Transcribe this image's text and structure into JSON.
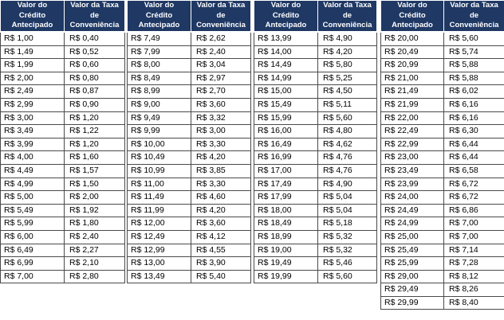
{
  "headers": {
    "credit": [
      "Valor do",
      "Crédito",
      "Antecipado"
    ],
    "fee": [
      "Valor da Taxa",
      "de",
      "Conveniência"
    ]
  },
  "tables": [
    {
      "rows": [
        [
          "R$ 1,00",
          "R$ 0,40"
        ],
        [
          "R$ 1,49",
          "R$ 0,52"
        ],
        [
          "R$ 1,99",
          "R$ 0,60"
        ],
        [
          "R$ 2,00",
          "R$ 0,80"
        ],
        [
          "R$ 2,49",
          "R$ 0,87"
        ],
        [
          "R$ 2,99",
          "R$ 0,90"
        ],
        [
          "R$ 3,00",
          "R$ 1,20"
        ],
        [
          "R$ 3,49",
          "R$ 1,22"
        ],
        [
          "R$ 3,99",
          "R$ 1,20"
        ],
        [
          "R$ 4,00",
          "R$ 1,60"
        ],
        [
          "R$ 4,49",
          "R$ 1,57"
        ],
        [
          "R$ 4,99",
          "R$ 1,50"
        ],
        [
          "R$ 5,00",
          "R$ 2,00"
        ],
        [
          "R$ 5,49",
          "R$ 1,92"
        ],
        [
          "R$ 5,99",
          "R$ 1,80"
        ],
        [
          "R$ 6,00",
          "R$ 2,40"
        ],
        [
          "R$ 6,49",
          "R$ 2,27"
        ],
        [
          "R$ 6,99",
          "R$ 2,10"
        ],
        [
          "R$ 7,00",
          "R$ 2,80"
        ]
      ]
    },
    {
      "rows": [
        [
          "R$ 7,49",
          "R$ 2,62"
        ],
        [
          "R$ 7,99",
          "R$ 2,40"
        ],
        [
          "R$ 8,00",
          "R$ 3,04"
        ],
        [
          "R$ 8,49",
          "R$ 2,97"
        ],
        [
          "R$ 8,99",
          "R$ 2,70"
        ],
        [
          "R$ 9,00",
          "R$ 3,60"
        ],
        [
          "R$ 9,49",
          "R$ 3,32"
        ],
        [
          "R$ 9,99",
          "R$ 3,00"
        ],
        [
          "R$ 10,00",
          "R$ 3,30"
        ],
        [
          "R$ 10,49",
          "R$ 4,20"
        ],
        [
          "R$ 10,99",
          "R$ 3,85"
        ],
        [
          "R$ 11,00",
          "R$ 3,30"
        ],
        [
          "R$ 11,49",
          "R$ 4,60"
        ],
        [
          "R$ 11,99",
          "R$ 4,20"
        ],
        [
          "R$ 12,00",
          "R$ 3,60"
        ],
        [
          "R$ 12,49",
          "R$ 4,12"
        ],
        [
          "R$ 12,99",
          "R$ 4,55"
        ],
        [
          "R$ 13,00",
          "R$ 3,90"
        ],
        [
          "R$ 13,49",
          "R$ 5,40"
        ]
      ]
    },
    {
      "rows": [
        [
          "R$ 13,99",
          "R$ 4,90"
        ],
        [
          "R$ 14,00",
          "R$ 4,20"
        ],
        [
          "R$ 14,49",
          "R$ 5,80"
        ],
        [
          "R$ 14,99",
          "R$ 5,25"
        ],
        [
          "R$ 15,00",
          "R$ 4,50"
        ],
        [
          "R$ 15,49",
          "R$ 5,11"
        ],
        [
          "R$ 15,99",
          "R$ 5,60"
        ],
        [
          "R$ 16,00",
          "R$ 4,80"
        ],
        [
          "R$ 16,49",
          "R$ 4,62"
        ],
        [
          "R$ 16,99",
          "R$ 4,76"
        ],
        [
          "R$ 17,00",
          "R$ 4,76"
        ],
        [
          "R$ 17,49",
          "R$ 4,90"
        ],
        [
          "R$ 17,99",
          "R$ 5,04"
        ],
        [
          "R$ 18,00",
          "R$ 5,04"
        ],
        [
          "R$ 18,49",
          "R$ 5,18"
        ],
        [
          "R$ 18,99",
          "R$ 5,32"
        ],
        [
          "R$ 19,00",
          "R$ 5,32"
        ],
        [
          "R$ 19,49",
          "R$ 5,46"
        ],
        [
          "R$ 19,99",
          "R$ 5,60"
        ]
      ]
    },
    {
      "rows": [
        [
          "R$ 20,00",
          "R$ 5,60"
        ],
        [
          "R$ 20,49",
          "R$ 5,74"
        ],
        [
          "R$ 20,99",
          "R$ 5,88"
        ],
        [
          "R$ 21,00",
          "R$ 5,88"
        ],
        [
          "R$ 21,49",
          "R$ 6,02"
        ],
        [
          "R$ 21,99",
          "R$ 6,16"
        ],
        [
          "R$ 22,00",
          "R$ 6,16"
        ],
        [
          "R$ 22,49",
          "R$ 6,30"
        ],
        [
          "R$ 22,99",
          "R$ 6,44"
        ],
        [
          "R$ 23,00",
          "R$ 6,44"
        ],
        [
          "R$ 23,49",
          "R$ 6,58"
        ],
        [
          "R$ 23,99",
          "R$ 6,72"
        ],
        [
          "R$ 24,00",
          "R$ 6,72"
        ],
        [
          "R$ 24,49",
          "R$ 6,86"
        ],
        [
          "R$ 24,99",
          "R$ 7,00"
        ],
        [
          "R$ 25,00",
          "R$ 7,00"
        ],
        [
          "R$ 25,49",
          "R$ 7,14"
        ],
        [
          "R$ 25,99",
          "R$ 7,28"
        ],
        [
          "R$ 29,00",
          "R$ 8,12"
        ],
        [
          "R$ 29,49",
          "R$ 8,26"
        ],
        [
          "R$ 29,99",
          "R$ 8,40"
        ]
      ]
    }
  ],
  "colors": {
    "header_bg": "#1f3864",
    "header_text": "#ffffff",
    "border": "#4a4a4a"
  }
}
